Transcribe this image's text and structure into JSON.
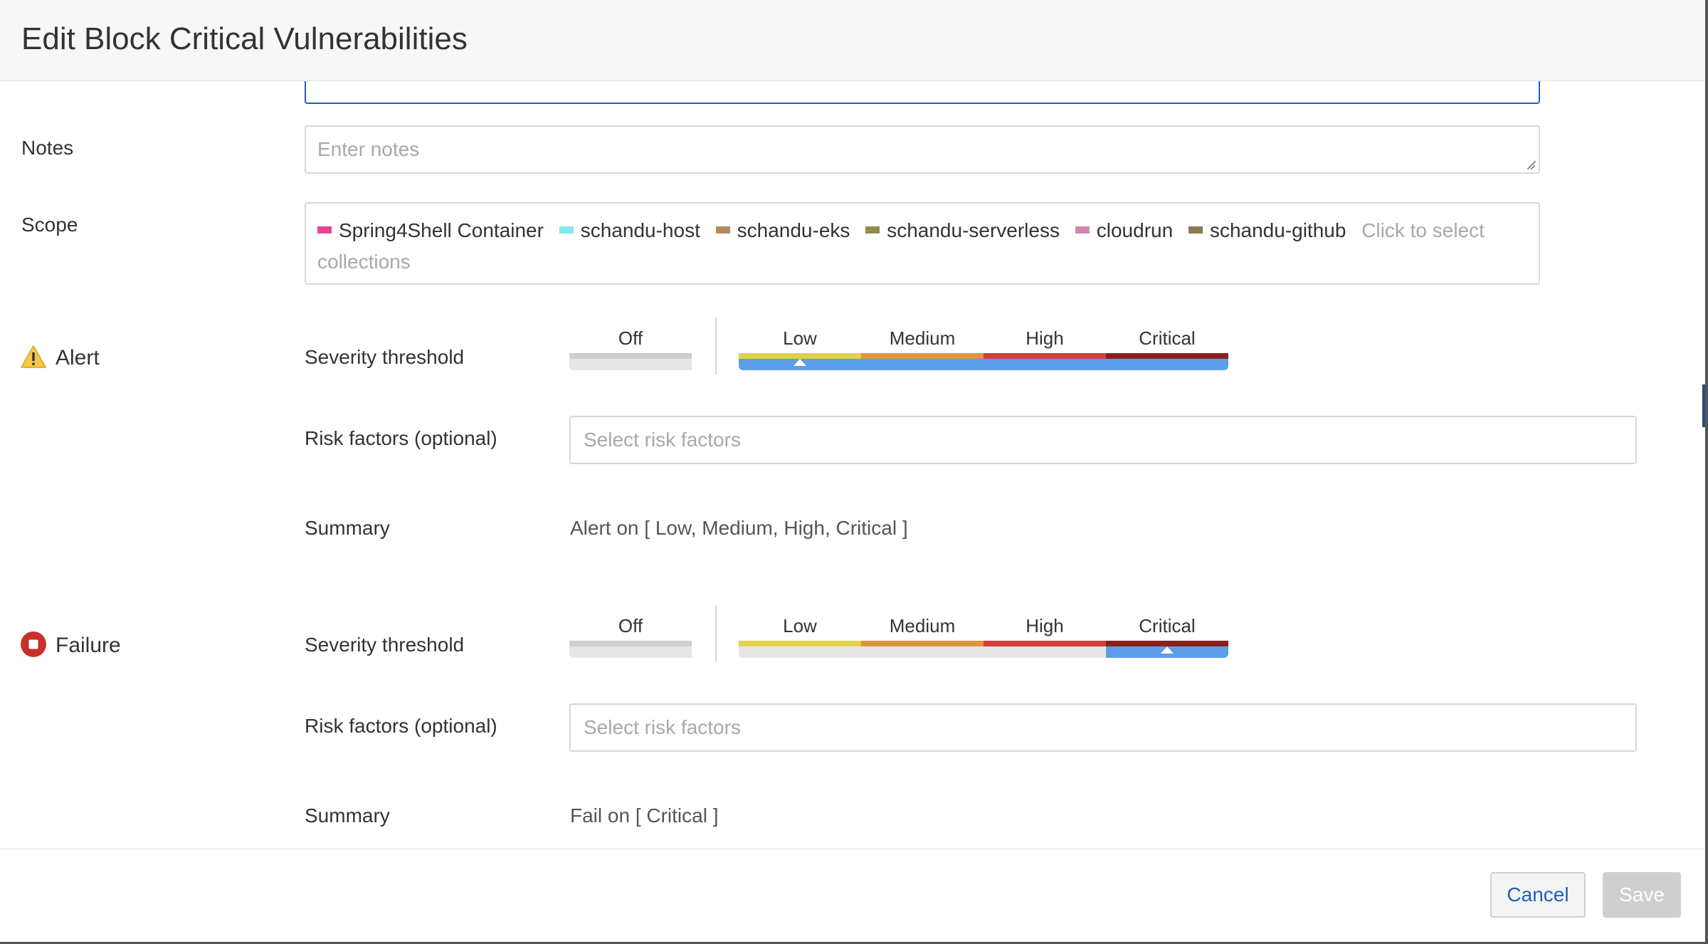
{
  "title": "Edit Block Critical Vulnerabilities",
  "notes": {
    "label": "Notes",
    "placeholder": "Enter notes"
  },
  "scope": {
    "label": "Scope",
    "chips": [
      {
        "name": "Spring4Shell Container",
        "color": "#e8439a"
      },
      {
        "name": "schandu-host",
        "color": "#7fe8f0"
      },
      {
        "name": "schandu-eks",
        "color": "#b58a5a"
      },
      {
        "name": "schandu-serverless",
        "color": "#8e8e52"
      },
      {
        "name": "cloudrun",
        "color": "#cf86b0"
      },
      {
        "name": "schandu-github",
        "color": "#8a7a4e"
      }
    ],
    "placeholder": "Click to select collections"
  },
  "severity_levels": {
    "off": "Off",
    "low": "Low",
    "medium": "Medium",
    "high": "High",
    "critical": "Critical"
  },
  "level_colors": {
    "off": "#cfcfcf",
    "low": "#e2d24a",
    "medium": "#e0953f",
    "high": "#d53c3c",
    "critical": "#8a1f1f"
  },
  "alert": {
    "label": "Alert",
    "icon": "warning-icon",
    "severity_label": "Severity threshold",
    "threshold": "Low",
    "risk_label": "Risk factors (optional)",
    "risk_placeholder": "Select risk factors",
    "summary_label": "Summary",
    "summary": "Alert on [ Low, Medium, High, Critical ]"
  },
  "failure": {
    "label": "Failure",
    "icon": "stop-icon",
    "severity_label": "Severity threshold",
    "threshold": "Critical",
    "risk_label": "Risk factors (optional)",
    "risk_placeholder": "Select risk factors",
    "summary_label": "Summary",
    "summary": "Fail on [ Critical ]"
  },
  "footer": {
    "cancel": "Cancel",
    "save": "Save"
  }
}
